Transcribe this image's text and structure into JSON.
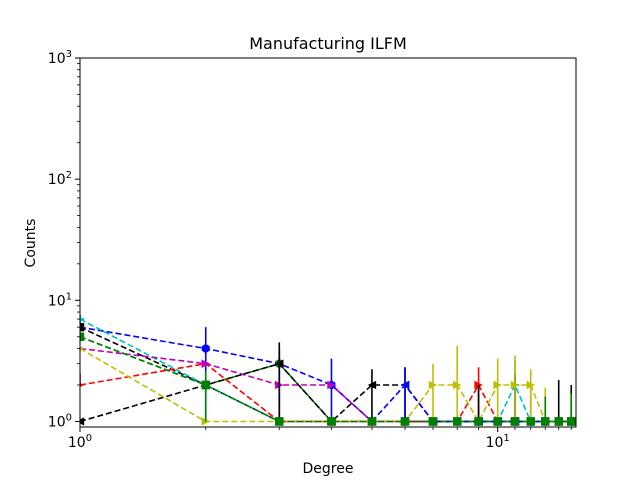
{
  "chart_data": {
    "type": "line",
    "title": "Manufacturing ILFM",
    "xlabel": "Degree",
    "ylabel": "Counts",
    "xscale": "log",
    "yscale": "log",
    "xlim": [
      1,
      15.4
    ],
    "ylim": [
      0.9,
      1000
    ],
    "x_ticks": [
      {
        "value": 1,
        "base": "10",
        "exp": "0"
      },
      {
        "value": 10,
        "base": "10",
        "exp": "1"
      }
    ],
    "y_ticks": [
      {
        "value": 1,
        "base": "10",
        "exp": "0"
      },
      {
        "value": 10,
        "base": "10",
        "exp": "1"
      },
      {
        "value": 100,
        "base": "10",
        "exp": "2"
      },
      {
        "value": 1000,
        "base": "10",
        "exp": "3"
      }
    ],
    "grid": false,
    "series": [
      {
        "color": "#0000ff",
        "marker": "hexagon",
        "points": [
          [
            1,
            6
          ],
          [
            2,
            4
          ],
          [
            3,
            3
          ],
          [
            4,
            2
          ],
          [
            5,
            1
          ],
          [
            6,
            1
          ],
          [
            7,
            1
          ],
          [
            8,
            1
          ],
          [
            9,
            1
          ],
          [
            10,
            1
          ],
          [
            11,
            1
          ],
          [
            12,
            1
          ],
          [
            13,
            1
          ],
          [
            14,
            1
          ],
          [
            15,
            1
          ]
        ],
        "yerr": [
          [
            1,
            2,
            2.5
          ],
          [
            2,
            1,
            6
          ],
          [
            3,
            1,
            4
          ],
          [
            4,
            1,
            3.3
          ],
          [
            12,
            1,
            1.8
          ]
        ]
      },
      {
        "color": "#000000",
        "marker": "square",
        "points": [
          [
            1,
            6
          ],
          [
            2,
            2
          ],
          [
            3,
            1
          ],
          [
            4,
            1
          ],
          [
            5,
            1
          ],
          [
            6,
            1
          ],
          [
            7,
            1
          ],
          [
            8,
            1
          ],
          [
            9,
            1
          ],
          [
            10,
            1
          ],
          [
            11,
            1
          ],
          [
            12,
            1
          ],
          [
            13,
            1
          ],
          [
            14,
            1
          ],
          [
            15,
            1
          ]
        ],
        "yerr": [
          [
            14,
            1,
            2.2
          ],
          [
            15,
            1,
            2
          ]
        ]
      },
      {
        "color": "#00bfbf",
        "marker": "plus",
        "points": [
          [
            1,
            7
          ],
          [
            2,
            2
          ],
          [
            3,
            1
          ],
          [
            4,
            1
          ],
          [
            5,
            1
          ],
          [
            6,
            1
          ],
          [
            7,
            1
          ],
          [
            8,
            1
          ],
          [
            9,
            1
          ],
          [
            10,
            1
          ],
          [
            11,
            2
          ],
          [
            12,
            1
          ],
          [
            13,
            1
          ]
        ],
        "yerr": [
          [
            11,
            1,
            3.2
          ]
        ]
      },
      {
        "color": "#008000",
        "marker": "circle",
        "points": [
          [
            1,
            5
          ],
          [
            2,
            2
          ],
          [
            3,
            3
          ],
          [
            4,
            1
          ],
          [
            5,
            1
          ],
          [
            6,
            1
          ],
          [
            7,
            1
          ],
          [
            8,
            1
          ],
          [
            9,
            1
          ],
          [
            10,
            1
          ],
          [
            11,
            1
          ],
          [
            12,
            1
          ],
          [
            13,
            1
          ],
          [
            14,
            1
          ],
          [
            15,
            1
          ]
        ],
        "yerr": [
          [
            15,
            1,
            1.7
          ]
        ]
      },
      {
        "color": "#ff0000",
        "marker": "triangle-right",
        "points": [
          [
            1,
            2
          ],
          [
            2,
            3
          ],
          [
            3,
            1
          ],
          [
            4,
            1
          ],
          [
            5,
            1
          ],
          [
            6,
            1
          ],
          [
            7,
            1
          ],
          [
            8,
            1
          ],
          [
            9,
            2
          ],
          [
            10,
            1
          ],
          [
            11,
            1
          ]
        ],
        "yerr": [
          [
            9,
            1,
            2.8
          ]
        ]
      },
      {
        "color": "#bf00bf",
        "marker": "triangle-right",
        "points": [
          [
            1,
            4
          ],
          [
            2,
            3
          ],
          [
            3,
            2
          ],
          [
            4,
            2
          ],
          [
            5,
            1
          ],
          [
            6,
            1
          ],
          [
            7,
            1
          ]
        ],
        "yerr": [
          [
            3,
            1,
            4
          ]
        ]
      },
      {
        "color": "#000000",
        "marker": "triangle-left",
        "points": [
          [
            1,
            1
          ],
          [
            3,
            3
          ],
          [
            4,
            1
          ],
          [
            5,
            2
          ],
          [
            6,
            2
          ],
          [
            7,
            1
          ],
          [
            8,
            1
          ],
          [
            9,
            1
          ],
          [
            10,
            1
          ],
          [
            11,
            1
          ]
        ],
        "yerr": [
          [
            3,
            1,
            4.5
          ],
          [
            5,
            1,
            2.7
          ],
          [
            6,
            1,
            2.8
          ],
          [
            9,
            1,
            2
          ],
          [
            11,
            1,
            2.5
          ]
        ]
      },
      {
        "color": "#bfbf00",
        "marker": "triangle-right",
        "points": [
          [
            1,
            4
          ],
          [
            2,
            1
          ],
          [
            3,
            1
          ],
          [
            4,
            1
          ],
          [
            5,
            1
          ],
          [
            6,
            1
          ],
          [
            7,
            2
          ],
          [
            8,
            2
          ],
          [
            9,
            1
          ],
          [
            10,
            2
          ],
          [
            11,
            2
          ],
          [
            12,
            2
          ],
          [
            13,
            1
          ],
          [
            14,
            1
          ]
        ],
        "yerr": [
          [
            7,
            1,
            3
          ],
          [
            8,
            1,
            4.2
          ],
          [
            10,
            1,
            3.3
          ],
          [
            11,
            1,
            3.5
          ],
          [
            12,
            1,
            2.7
          ],
          [
            13,
            1,
            1.9
          ]
        ]
      },
      {
        "color": "#0000ff",
        "marker": "triangle-left",
        "points": [
          [
            5,
            1
          ],
          [
            6,
            2
          ],
          [
            7,
            1
          ],
          [
            8,
            1
          ],
          [
            9,
            1
          ],
          [
            10,
            1
          ],
          [
            11,
            1
          ],
          [
            12,
            1
          ],
          [
            13,
            1
          ]
        ],
        "yerr": [
          [
            6,
            1,
            2.8
          ]
        ]
      },
      {
        "color": "#008000",
        "marker": "square",
        "points": [
          [
            1,
            5
          ],
          [
            2,
            2
          ],
          [
            3,
            1
          ],
          [
            4,
            1
          ],
          [
            5,
            1
          ],
          [
            6,
            1
          ],
          [
            7,
            1
          ],
          [
            8,
            1
          ],
          [
            9,
            1
          ],
          [
            10,
            1
          ],
          [
            11,
            1
          ],
          [
            12,
            1
          ],
          [
            13,
            1
          ],
          [
            14,
            1
          ],
          [
            15,
            1
          ]
        ],
        "yerr": [
          [
            2,
            1,
            2.6
          ],
          [
            13,
            1,
            1.6
          ]
        ]
      }
    ]
  }
}
